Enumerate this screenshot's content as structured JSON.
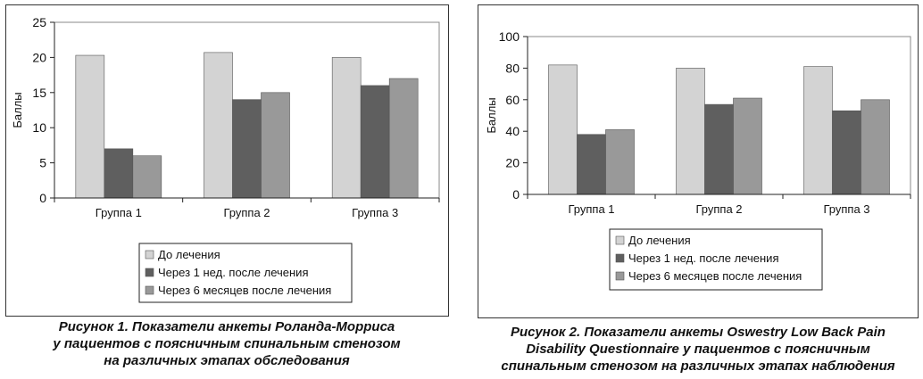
{
  "colors": {
    "series": [
      "#d3d3d3",
      "#5f5f5f",
      "#999999"
    ],
    "axis": "#222222",
    "frame": "#333333"
  },
  "chart_data": [
    {
      "type": "bar",
      "title": "",
      "xlabel": "",
      "ylabel": "Баллы",
      "ylim": [
        0,
        25
      ],
      "yticks": [
        0,
        5,
        10,
        15,
        20,
        25
      ],
      "grid": false,
      "legend_position": "bottom",
      "categories": [
        "Группа 1",
        "Группа 2",
        "Группа 3"
      ],
      "series": [
        {
          "name": "До лечения",
          "values": [
            20.3,
            20.7,
            20
          ]
        },
        {
          "name": "Через 1 нед. после лечения",
          "values": [
            7,
            14,
            16
          ]
        },
        {
          "name": "Через 6 месяцев после лечения",
          "values": [
            6,
            15,
            17
          ]
        }
      ]
    },
    {
      "type": "bar",
      "title": "",
      "xlabel": "",
      "ylabel": "Баллы",
      "ylim": [
        0,
        100
      ],
      "yticks": [
        0,
        20,
        40,
        60,
        80,
        100
      ],
      "grid": false,
      "legend_position": "bottom",
      "categories": [
        "Группа 1",
        "Группа 2",
        "Группа 3"
      ],
      "series": [
        {
          "name": "До лечения",
          "values": [
            82,
            80,
            81
          ]
        },
        {
          "name": "Через 1 нед. после лечения",
          "values": [
            38,
            57,
            53
          ]
        },
        {
          "name": "Через 6 месяцев после лечения",
          "values": [
            41,
            61,
            60
          ]
        }
      ]
    }
  ],
  "captions": [
    {
      "lines": [
        "Рисунок 1. Показатели анкеты Роланда-Морриса",
        "у пациентов с поясничным спинальным стенозом",
        "на различных этапах обследования"
      ]
    },
    {
      "lines": [
        "Рисунок 2. Показатели анкеты Oswestry Low Back Pain",
        "Disability Questionnaire у пациентов с поясничным",
        "спинальным стенозом на различных этапах наблюдения"
      ]
    }
  ]
}
